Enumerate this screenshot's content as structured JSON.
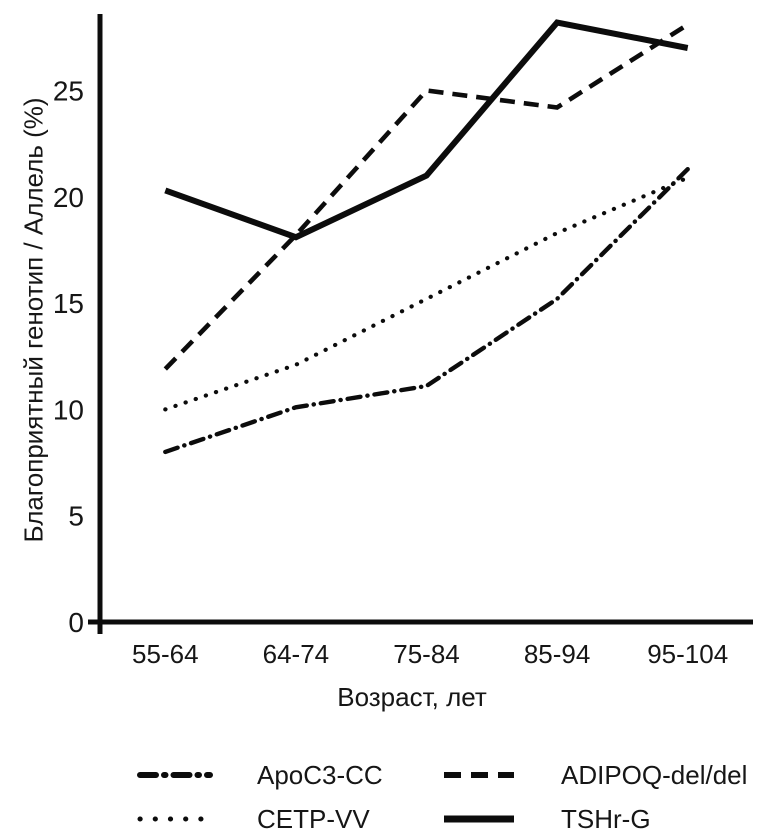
{
  "figure": {
    "background_color": "#ffffff",
    "ink_color": "#0c0c0c"
  },
  "chart_data": {
    "type": "line",
    "title": "",
    "xlabel": "Возраст, лет",
    "ylabel": "Благоприятный генотип / Аллель (%)",
    "categories": [
      "55-64",
      "64-74",
      "75-84",
      "85-94",
      "95-104"
    ],
    "yticks": [
      0,
      5,
      10,
      15,
      20,
      25
    ],
    "ylim": [
      0,
      28.6
    ],
    "grid": false,
    "legend_position": "bottom-two-columns",
    "series": [
      {
        "name": "ApoC3-CC",
        "style": "dashdot",
        "values": [
          8.0,
          10.1,
          11.1,
          15.2,
          21.3
        ]
      },
      {
        "name": "CETP-VV",
        "style": "dotted",
        "values": [
          10.0,
          12.1,
          15.2,
          18.3,
          20.9
        ]
      },
      {
        "name": "ADIPOQ-del/del",
        "style": "dashed",
        "values": [
          11.9,
          18.2,
          25.0,
          24.2,
          28.1
        ]
      },
      {
        "name": "TSHr-G",
        "style": "solid",
        "values": [
          20.3,
          18.1,
          21.0,
          28.2,
          27.0
        ]
      }
    ]
  }
}
